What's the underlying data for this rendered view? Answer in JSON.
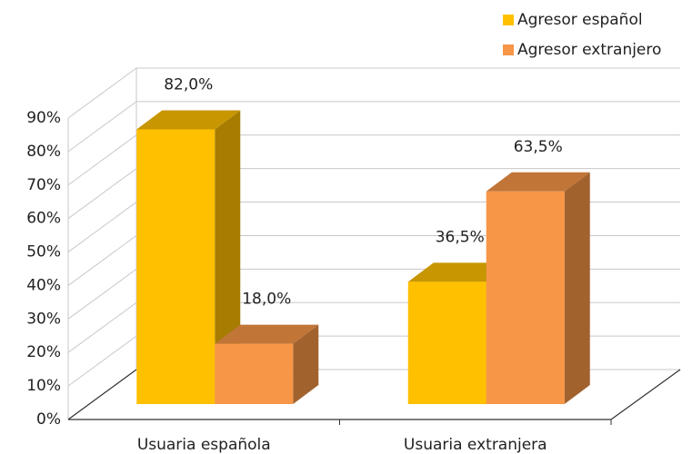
{
  "chart_data": {
    "type": "bar3d",
    "categories": [
      "Usuaria española",
      "Usuaria extranjera"
    ],
    "series": [
      {
        "name": "Agresor español",
        "color": "#ffc000",
        "values": [
          82.0,
          36.5
        ],
        "value_labels": [
          "82,0%",
          "36,5%"
        ]
      },
      {
        "name": "Agresor extranjero",
        "color": "#f79646",
        "values": [
          18.0,
          63.5
        ],
        "value_labels": [
          "18,0%",
          "63,5%"
        ]
      }
    ],
    "ylim": [
      0,
      90
    ],
    "yticks": [
      {
        "value": 0,
        "label": "0%"
      },
      {
        "value": 10,
        "label": "10%"
      },
      {
        "value": 20,
        "label": "20%"
      },
      {
        "value": 30,
        "label": "30%"
      },
      {
        "value": 40,
        "label": "40%"
      },
      {
        "value": 50,
        "label": "50%"
      },
      {
        "value": 60,
        "label": "60%"
      },
      {
        "value": 70,
        "label": "70%"
      },
      {
        "value": 80,
        "label": "80%"
      },
      {
        "value": 90,
        "label": "90%"
      }
    ],
    "grid": true,
    "legend": "top-right"
  }
}
